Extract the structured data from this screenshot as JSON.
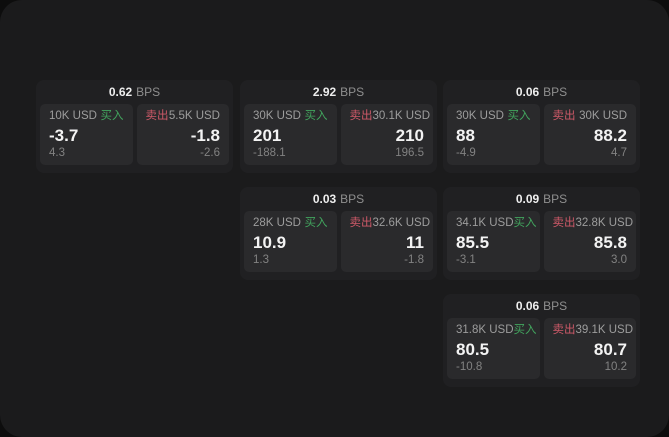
{
  "labels": {
    "buy": "买入",
    "sell": "卖出",
    "bps": "BPS"
  },
  "colors": {
    "buy_accent": "#42a55e",
    "sell_accent": "#ce5968",
    "panel_bg": "#1b1b1c",
    "card_bg": "#202022",
    "tile_bg": "#2a2a2c"
  },
  "cards": [
    {
      "bps": "0.62",
      "buy": {
        "amount": "10K USD",
        "value": "-3.7",
        "delta": "4.3"
      },
      "sell": {
        "amount": "5.5K USD",
        "value": "-1.8",
        "delta": "-2.6"
      }
    },
    {
      "bps": "2.92",
      "buy": {
        "amount": "30K USD",
        "value": "201",
        "delta": "-188.1"
      },
      "sell": {
        "amount": "30.1K USD",
        "value": "210",
        "delta": "196.5"
      }
    },
    {
      "bps": "0.06",
      "buy": {
        "amount": "30K USD",
        "value": "88",
        "delta": "-4.9"
      },
      "sell": {
        "amount": "30K USD",
        "value": "88.2",
        "delta": "4.7"
      }
    },
    {
      "bps": "0.03",
      "buy": {
        "amount": "28K USD",
        "value": "10.9",
        "delta": "1.3"
      },
      "sell": {
        "amount": "32.6K USD",
        "value": "11",
        "delta": "-1.8"
      }
    },
    {
      "bps": "0.09",
      "buy": {
        "amount": "34.1K USD",
        "value": "85.5",
        "delta": "-3.1"
      },
      "sell": {
        "amount": "32.8K USD",
        "value": "85.8",
        "delta": "3.0"
      }
    },
    {
      "bps": "0.06",
      "buy": {
        "amount": "31.8K USD",
        "value": "80.5",
        "delta": "-10.8"
      },
      "sell": {
        "amount": "39.1K USD",
        "value": "80.7",
        "delta": "10.2"
      }
    }
  ]
}
